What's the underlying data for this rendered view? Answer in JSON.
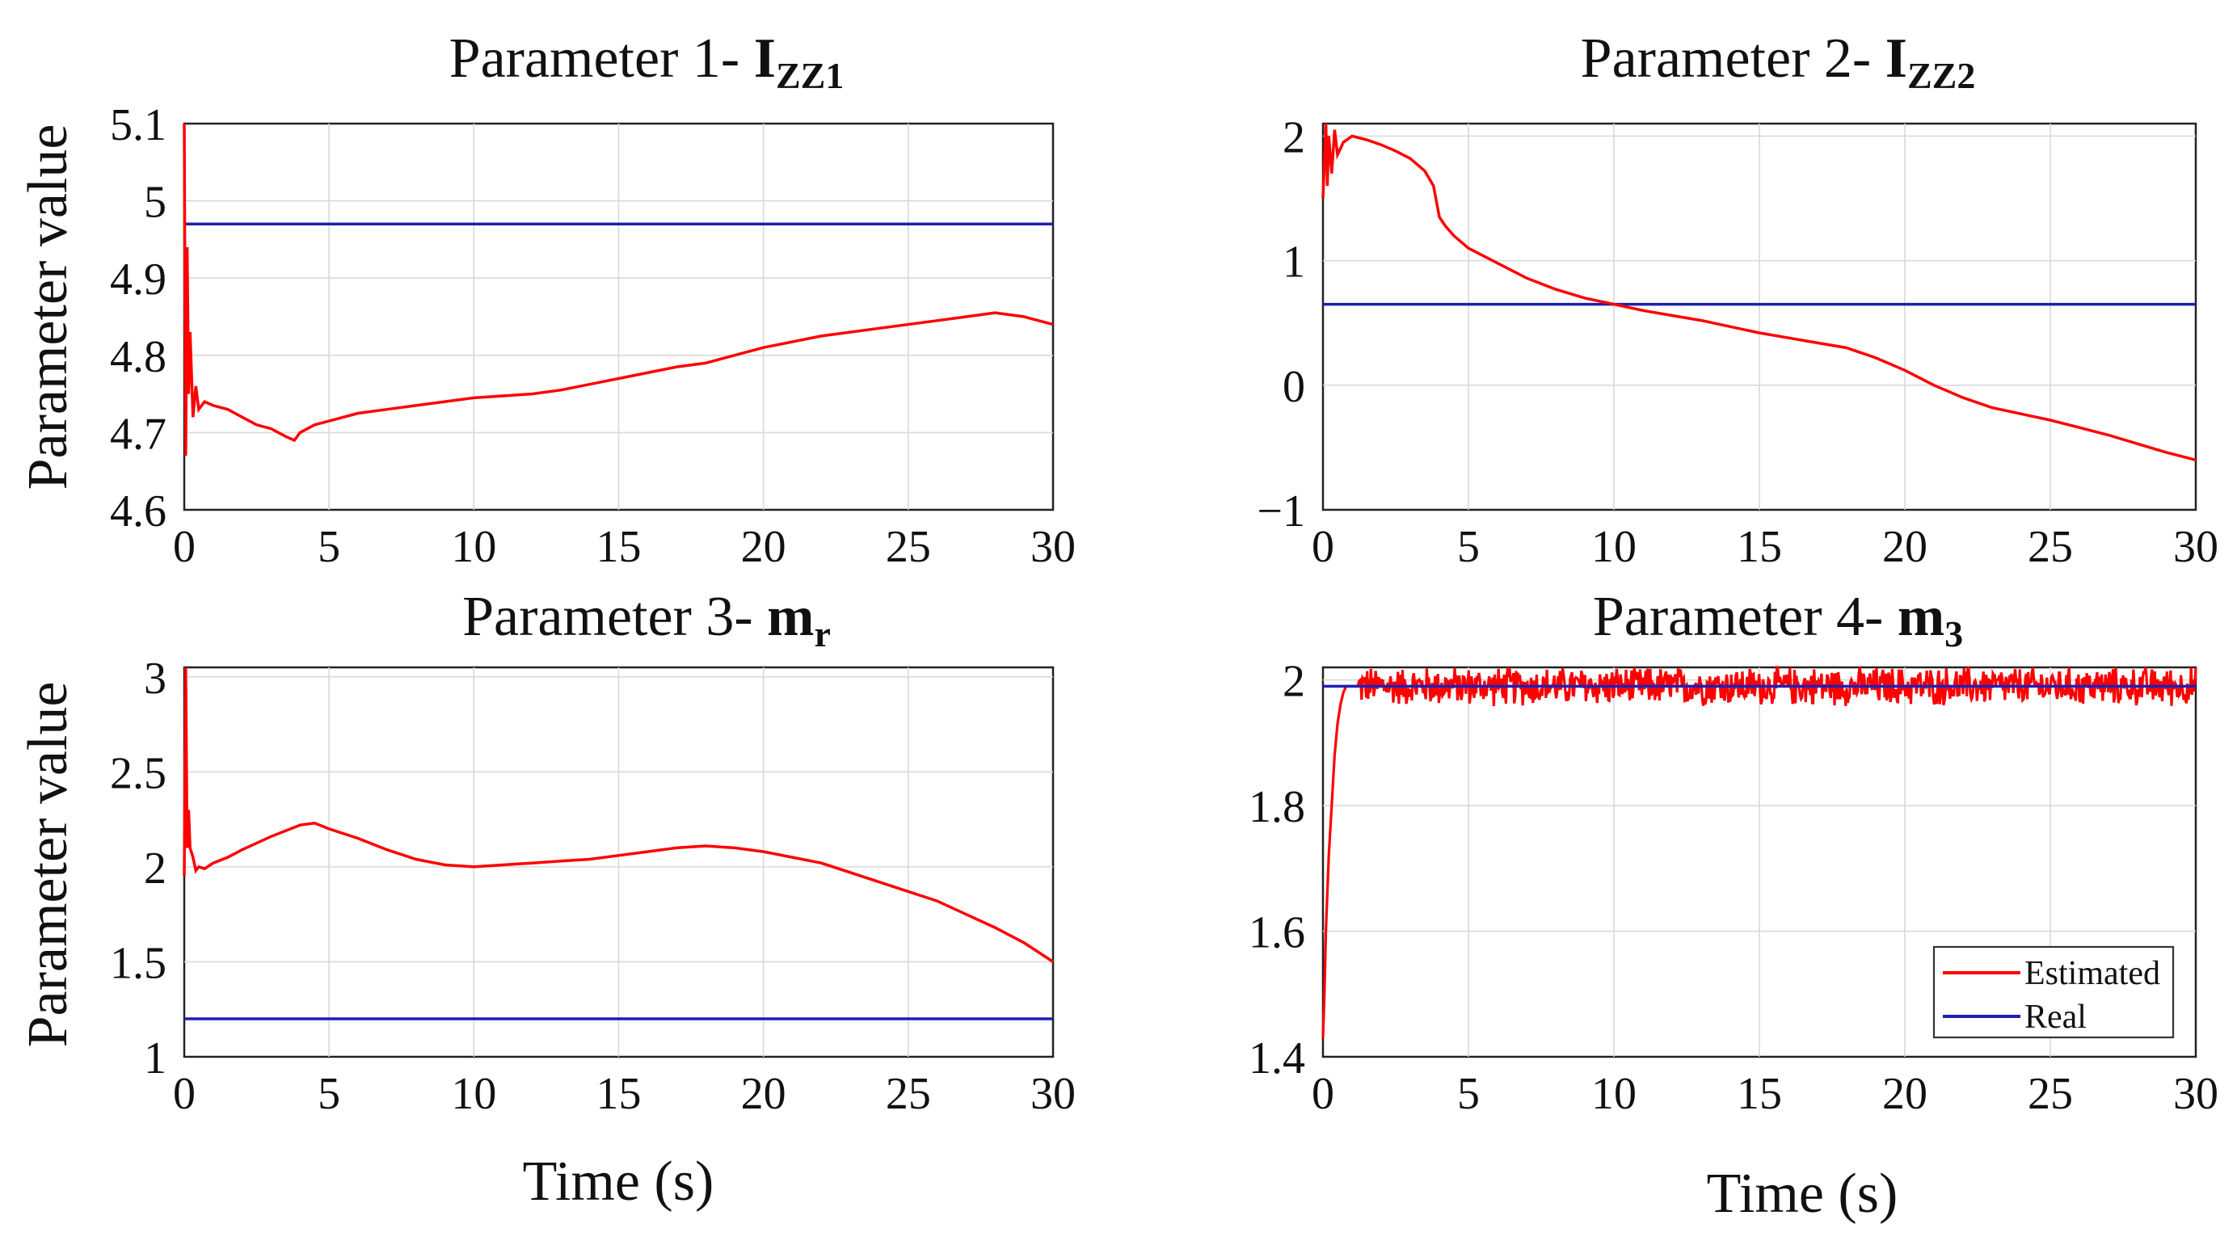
{
  "figure": {
    "ylabel": "Parameter value",
    "xlabel": "Time (s)",
    "legend": {
      "estimated": "Estimated",
      "real": "Real"
    },
    "colors": {
      "estimated": "#ff0000",
      "real": "#1f1fb4"
    }
  },
  "chart_data": [
    {
      "type": "line",
      "title_prefix": "Parameter 1- ",
      "title_symbol": "I",
      "title_subscript": "ZZ1",
      "xlim": [
        0,
        30
      ],
      "ylim": [
        4.6,
        5.1
      ],
      "xticks": [
        0,
        5,
        10,
        15,
        20,
        25,
        30
      ],
      "yticks": [
        4.6,
        4.7,
        4.8,
        4.9,
        5.0,
        5.1
      ],
      "ytick_labels": [
        "4.6",
        "4.7",
        "4.8",
        "4.9",
        "5",
        "5.1"
      ],
      "real": 4.97,
      "series": [
        {
          "name": "Estimated",
          "x": [
            0,
            0.05,
            0.1,
            0.15,
            0.2,
            0.3,
            0.4,
            0.5,
            0.7,
            1,
            1.5,
            2,
            2.5,
            3,
            3.5,
            3.8,
            4,
            4.5,
            5,
            6,
            7,
            8,
            10,
            12,
            13,
            15,
            17,
            18,
            20,
            22,
            24,
            26,
            27,
            28,
            29,
            30
          ],
          "y": [
            5.1,
            4.67,
            4.94,
            4.75,
            4.83,
            4.72,
            4.76,
            4.73,
            4.74,
            4.735,
            4.73,
            4.72,
            4.71,
            4.705,
            4.695,
            4.69,
            4.7,
            4.71,
            4.715,
            4.725,
            4.73,
            4.735,
            4.745,
            4.75,
            4.755,
            4.77,
            4.785,
            4.79,
            4.81,
            4.825,
            4.835,
            4.845,
            4.85,
            4.855,
            4.85,
            4.84
          ]
        },
        {
          "name": "Real",
          "x": [
            0,
            30
          ],
          "y": [
            4.97,
            4.97
          ]
        }
      ]
    },
    {
      "type": "line",
      "title_prefix": "Parameter 2- ",
      "title_symbol": "I",
      "title_subscript": "ZZ2",
      "xlim": [
        0,
        30
      ],
      "ylim": [
        -1,
        2.1
      ],
      "xticks": [
        0,
        5,
        10,
        15,
        20,
        25,
        30
      ],
      "yticks": [
        -1,
        0,
        1,
        2
      ],
      "ytick_labels": [
        "−1",
        "0",
        "1",
        "2"
      ],
      "real": 0.65,
      "series": [
        {
          "name": "Estimated",
          "x": [
            0,
            0.1,
            0.15,
            0.2,
            0.3,
            0.4,
            0.5,
            0.7,
            1,
            1.5,
            2,
            2.5,
            3,
            3.5,
            3.8,
            4,
            4.2,
            4.5,
            5,
            6,
            7,
            8,
            9,
            10,
            11,
            12,
            13,
            14,
            15,
            16,
            17,
            18,
            19,
            20,
            21,
            22,
            23,
            24,
            25,
            26,
            27,
            28,
            29,
            30
          ],
          "y": [
            1.5,
            2.1,
            1.6,
            2.0,
            1.7,
            2.05,
            1.85,
            1.95,
            2.0,
            1.97,
            1.93,
            1.88,
            1.82,
            1.72,
            1.6,
            1.35,
            1.28,
            1.2,
            1.1,
            0.98,
            0.86,
            0.77,
            0.7,
            0.65,
            0.6,
            0.56,
            0.52,
            0.47,
            0.42,
            0.38,
            0.34,
            0.3,
            0.22,
            0.12,
            0.0,
            -0.1,
            -0.18,
            -0.23,
            -0.28,
            -0.34,
            -0.4,
            -0.47,
            -0.54,
            -0.6
          ]
        },
        {
          "name": "Real",
          "x": [
            0,
            30
          ],
          "y": [
            0.65,
            0.65
          ]
        }
      ]
    },
    {
      "type": "line",
      "title_prefix": "Parameter 3- ",
      "title_symbol": "m",
      "title_subscript": "r",
      "xlim": [
        0,
        30
      ],
      "ylim": [
        1,
        3.05
      ],
      "xticks": [
        0,
        5,
        10,
        15,
        20,
        25,
        30
      ],
      "yticks": [
        1,
        1.5,
        2,
        2.5,
        3
      ],
      "ytick_labels": [
        "1",
        "1.5",
        "2",
        "2.5",
        "3"
      ],
      "real": 1.2,
      "series": [
        {
          "name": "Estimated",
          "x": [
            0,
            0.05,
            0.1,
            0.15,
            0.2,
            0.3,
            0.4,
            0.5,
            0.7,
            1,
            1.5,
            2,
            3,
            4,
            4.5,
            5,
            6,
            7,
            8,
            9,
            10,
            11,
            12,
            13,
            14,
            15,
            16,
            17,
            18,
            19,
            20,
            21,
            22,
            23,
            24,
            25,
            26,
            27,
            28,
            29,
            30
          ],
          "y": [
            1.95,
            3.05,
            2.1,
            2.3,
            2.1,
            2.05,
            1.98,
            2.0,
            1.99,
            2.02,
            2.05,
            2.09,
            2.16,
            2.22,
            2.23,
            2.2,
            2.15,
            2.09,
            2.04,
            2.01,
            2.0,
            2.01,
            2.02,
            2.03,
            2.04,
            2.06,
            2.08,
            2.1,
            2.11,
            2.1,
            2.08,
            2.05,
            2.02,
            1.97,
            1.92,
            1.87,
            1.82,
            1.75,
            1.68,
            1.6,
            1.5
          ]
        },
        {
          "name": "Real",
          "x": [
            0,
            30
          ],
          "y": [
            1.2,
            1.2
          ]
        }
      ]
    },
    {
      "type": "line",
      "title_prefix": "Parameter 4- ",
      "title_symbol": "m",
      "title_subscript": "3",
      "xlim": [
        0,
        30
      ],
      "ylim": [
        1.4,
        2.02
      ],
      "xticks": [
        0,
        5,
        10,
        15,
        20,
        25,
        30
      ],
      "yticks": [
        1.4,
        1.6,
        1.8,
        2.0
      ],
      "ytick_labels": [
        "1.4",
        "1.6",
        "1.8",
        "2"
      ],
      "real": 1.99,
      "noise_amplitude": 0.035,
      "series": [
        {
          "name": "Estimated",
          "x": [
            0,
            0.05,
            0.1,
            0.2,
            0.3,
            0.4,
            0.5,
            0.6,
            0.7,
            0.8,
            1.0,
            1.2,
            30
          ],
          "y": [
            1.43,
            1.5,
            1.6,
            1.72,
            1.8,
            1.88,
            1.93,
            1.96,
            1.98,
            1.99,
            1.99,
            1.99,
            1.99
          ]
        },
        {
          "name": "Real",
          "x": [
            0,
            30
          ],
          "y": [
            1.99,
            1.99
          ]
        }
      ]
    }
  ]
}
